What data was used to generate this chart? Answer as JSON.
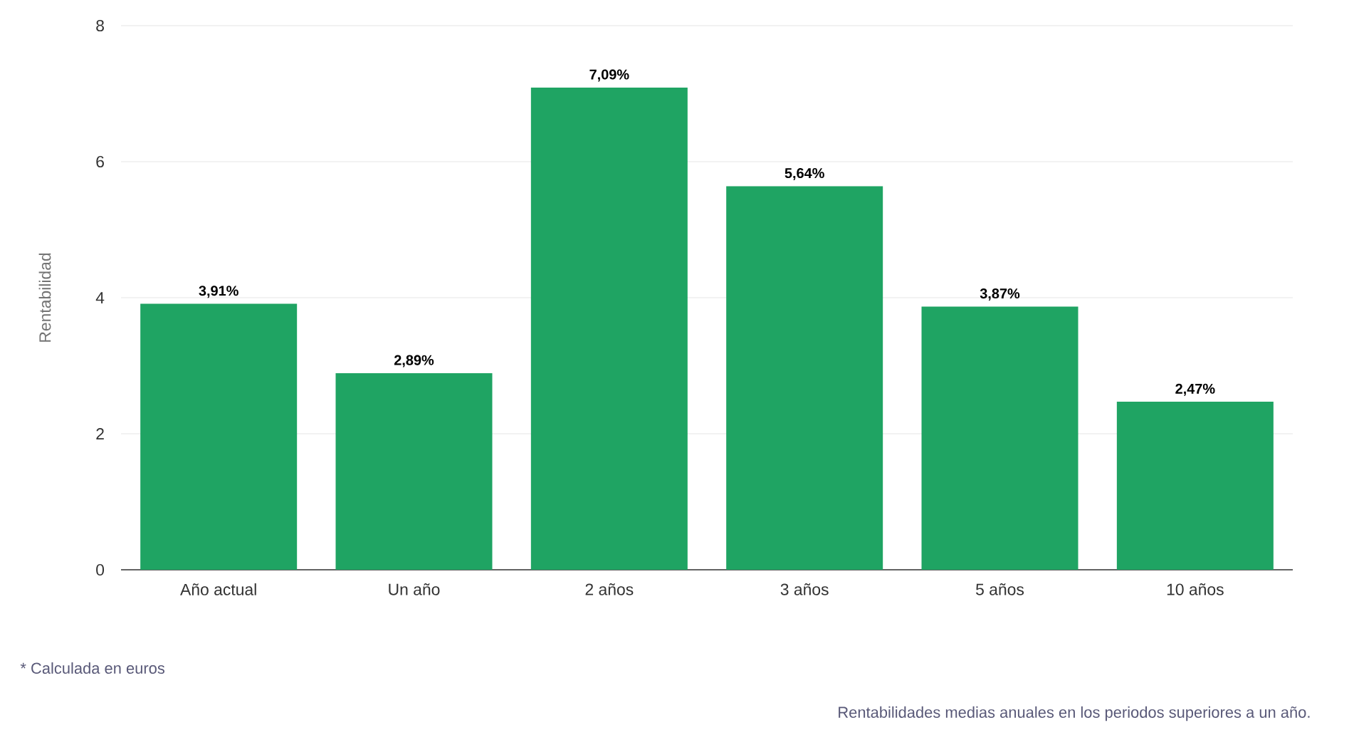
{
  "chart_data": {
    "type": "bar",
    "ylabel": "Rentabilidad",
    "categories": [
      "Año actual",
      "Un año",
      "2 años",
      "3 años",
      "5 años",
      "10 años"
    ],
    "values": [
      3.91,
      2.89,
      7.09,
      5.64,
      3.87,
      2.47
    ],
    "value_labels": [
      "3,91%",
      "2,89%",
      "7,09%",
      "5,64%",
      "3,87%",
      "2,47%"
    ],
    "color": "#1fa463",
    "ylim": [
      0,
      8
    ],
    "yticks": [
      0,
      2,
      4,
      6,
      8
    ],
    "grid": "y",
    "annotations": [
      "* Calculada en euros",
      "Rentabilidades medias anuales en los periodos superiores a un año."
    ]
  }
}
